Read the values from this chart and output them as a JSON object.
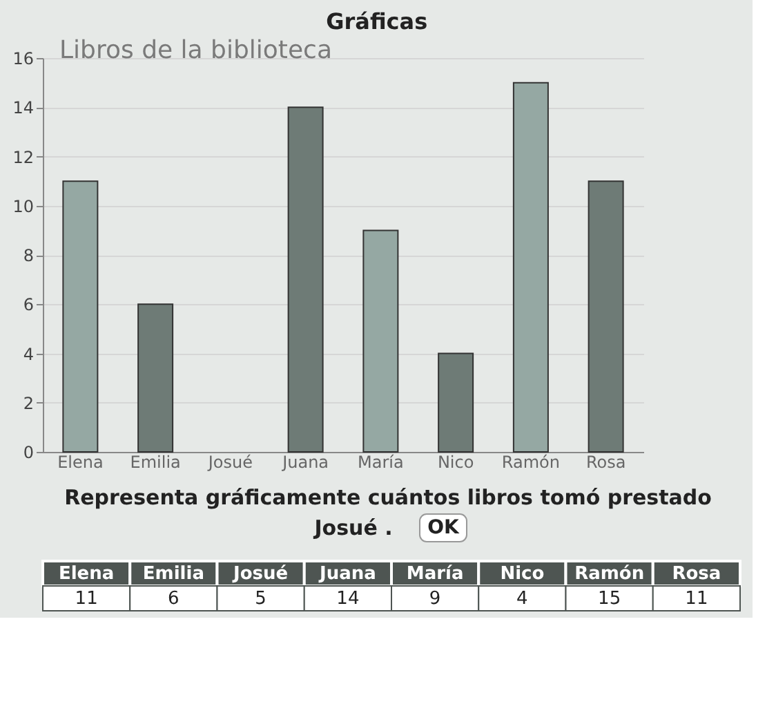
{
  "chart_data": [
    {
      "type": "bar",
      "title": "Gráficas",
      "subtitle": "Libros de la biblioteca",
      "categories": [
        "Elena",
        "Emilia",
        "Josué",
        "Juana",
        "María",
        "Nico",
        "Ramón",
        "Rosa"
      ],
      "values": [
        11,
        6,
        null,
        14,
        9,
        4,
        15,
        11
      ],
      "colors": [
        "#95a8a3",
        "#6e7b76",
        "#95a8a3",
        "#6e7b76",
        "#95a8a3",
        "#6e7b76",
        "#95a8a3",
        "#6e7b76"
      ],
      "ylim": [
        0,
        16
      ],
      "yticks": [
        0,
        2,
        4,
        6,
        8,
        10,
        12,
        14,
        16
      ],
      "grid": "y",
      "annotations": [
        "Representa gráficamente cuántos libros tomó prestado",
        "Josué .",
        "OK"
      ]
    },
    {
      "type": "other",
      "categories": [
        "Elena",
        "Emilia",
        "Josué",
        "Juana",
        "María",
        "Nico",
        "Ramón",
        "Rosa"
      ],
      "values": [
        11,
        6,
        5,
        14,
        9,
        4,
        15,
        11
      ],
      "data_labels": true
    }
  ]
}
